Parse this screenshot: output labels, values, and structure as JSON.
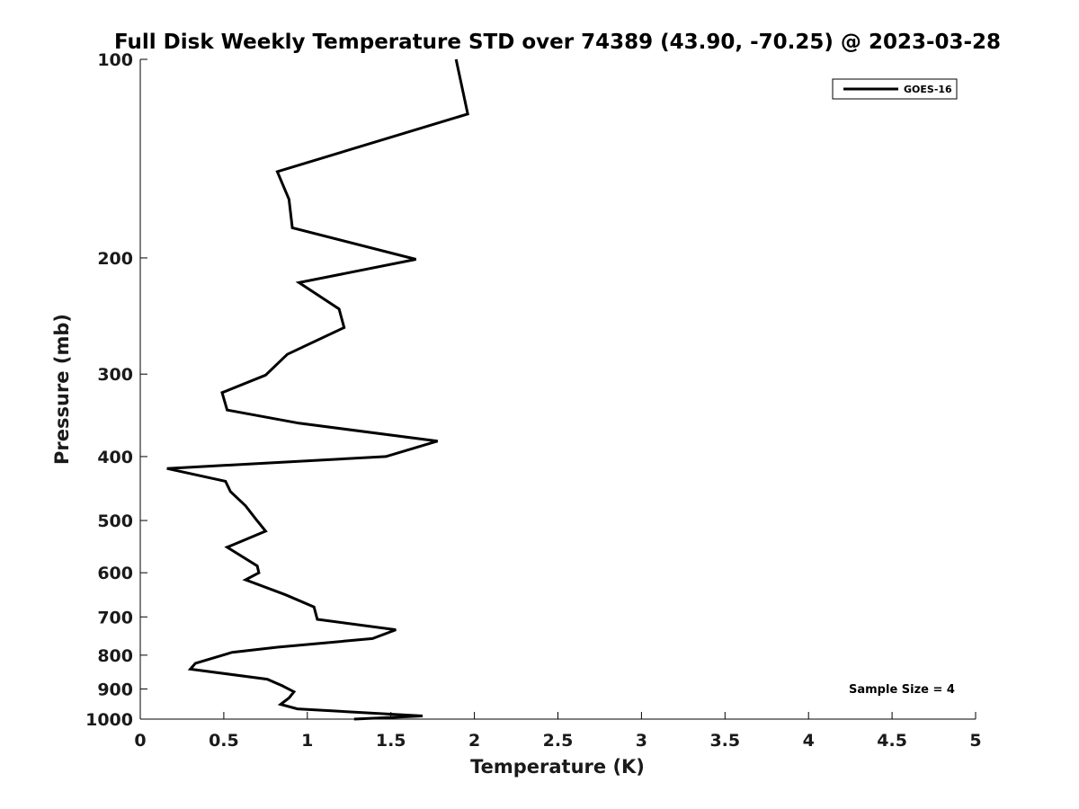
{
  "chart_data": {
    "type": "line",
    "title": "Full Disk Weekly Temperature STD over 74389 (43.90, -70.25) @ 2023-03-28",
    "xlabel": "Temperature (K)",
    "ylabel": "Pressure (mb)",
    "xlim": [
      0,
      5
    ],
    "ylim": [
      100,
      1000
    ],
    "y_scale": "log",
    "y_reversed": true,
    "grid": false,
    "legend_position": "top-right",
    "x_ticks": [
      "0",
      "0.5",
      "1",
      "1.5",
      "2",
      "2.5",
      "3",
      "3.5",
      "4",
      "4.5",
      "5"
    ],
    "y_ticks": [
      "100",
      "200",
      "300",
      "400",
      "500",
      "600",
      "700",
      "800",
      "900",
      "1000"
    ],
    "series": [
      {
        "name": "GOES-16",
        "color": "#000000",
        "x": [
          1.89,
          1.96,
          0.82,
          0.89,
          0.91,
          1.65,
          0.95,
          1.19,
          1.22,
          0.88,
          0.75,
          0.49,
          0.52,
          0.95,
          1.78,
          1.47,
          0.16,
          0.51,
          0.54,
          0.63,
          0.69,
          0.75,
          0.52,
          0.7,
          0.71,
          0.63,
          0.87,
          1.04,
          1.06,
          1.53,
          1.39,
          0.82,
          0.55,
          0.33,
          0.3,
          0.76,
          0.85,
          0.92,
          0.89,
          0.84,
          0.94,
          1.69,
          1.28
        ],
        "y": [
          100,
          121,
          148,
          163,
          180,
          201,
          218,
          239,
          255,
          280,
          301,
          320,
          340,
          356,
          379,
          400,
          417,
          436,
          452,
          475,
          497,
          519,
          549,
          586,
          600,
          615,
          648,
          676,
          706,
          732,
          755,
          778,
          792,
          823,
          840,
          870,
          890,
          909,
          929,
          950,
          965,
          989,
          1000
        ]
      }
    ],
    "annotations": [
      "Sample Size = 4"
    ]
  }
}
